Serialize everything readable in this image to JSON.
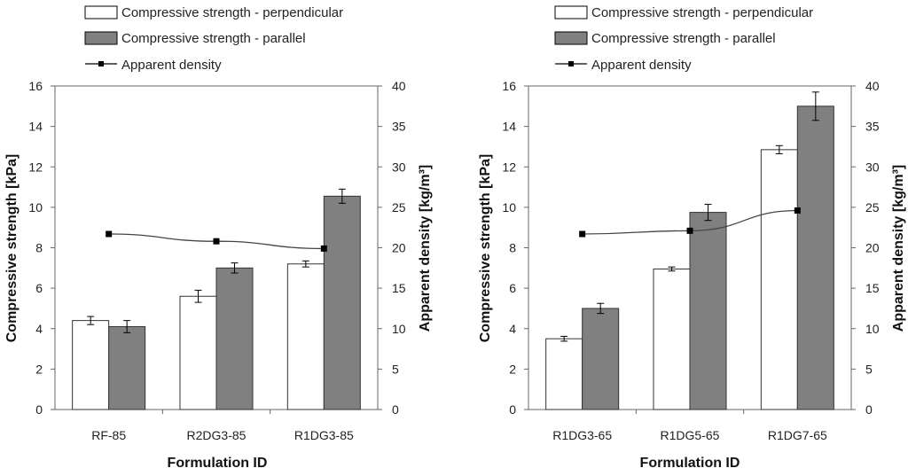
{
  "chart_data": [
    {
      "type": "bar",
      "title": "",
      "xlabel": "Formulation ID",
      "ylabel": "Compressive strength [kPa]",
      "y2label": "Apparent density [kg/m³]",
      "ylim": [
        0,
        16
      ],
      "y2lim": [
        0,
        40
      ],
      "yticks": [
        0,
        2,
        4,
        6,
        8,
        10,
        12,
        14,
        16
      ],
      "y2ticks": [
        0,
        5,
        10,
        15,
        20,
        25,
        30,
        35,
        40
      ],
      "categories": [
        "RF-85",
        "R2DG3-85",
        "R1DG3-85"
      ],
      "series": [
        {
          "name": "Compressive strength - perpendicular",
          "kind": "bar",
          "color": "#ffffff",
          "values": [
            4.4,
            5.6,
            7.2
          ],
          "errors": [
            0.2,
            0.3,
            0.15
          ]
        },
        {
          "name": "Compressive strength - parallel",
          "kind": "bar",
          "color": "#808080",
          "values": [
            4.1,
            7.0,
            10.55
          ],
          "errors": [
            0.3,
            0.25,
            0.35
          ]
        },
        {
          "name": "Apparent density",
          "kind": "line",
          "axis": "secondary",
          "color": "#000000",
          "values": [
            21.7,
            20.8,
            19.9
          ]
        }
      ],
      "legend": "top"
    },
    {
      "type": "bar",
      "title": "",
      "xlabel": "Formulation ID",
      "ylabel": "Compressive strength [kPa]",
      "y2label": "Apparent density [kg/m³]",
      "ylim": [
        0,
        16
      ],
      "y2lim": [
        0,
        40
      ],
      "yticks": [
        0,
        2,
        4,
        6,
        8,
        10,
        12,
        14,
        16
      ],
      "y2ticks": [
        0,
        5,
        10,
        15,
        20,
        25,
        30,
        35,
        40
      ],
      "categories": [
        "R1DG3-65",
        "R1DG5-65",
        "R1DG7-65"
      ],
      "series": [
        {
          "name": "Compressive strength - perpendicular",
          "kind": "bar",
          "color": "#ffffff",
          "values": [
            3.5,
            6.95,
            12.85
          ],
          "errors": [
            0.12,
            0.1,
            0.2
          ]
        },
        {
          "name": "Compressive strength - parallel",
          "kind": "bar",
          "color": "#808080",
          "values": [
            5.0,
            9.75,
            15.0
          ],
          "errors": [
            0.25,
            0.4,
            0.7
          ]
        },
        {
          "name": "Apparent density",
          "kind": "line",
          "axis": "secondary",
          "color": "#000000",
          "values": [
            21.7,
            22.1,
            24.6
          ]
        }
      ],
      "legend": "top"
    }
  ]
}
